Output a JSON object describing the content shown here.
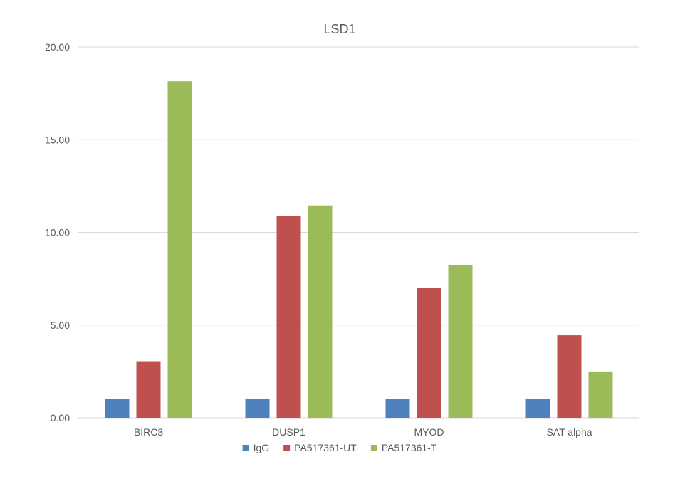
{
  "chart_data": {
    "type": "bar",
    "title": "LSD1",
    "categories": [
      "BIRC3",
      "DUSP1",
      "MYOD",
      "SAT alpha"
    ],
    "series": [
      {
        "name": "IgG",
        "values": [
          1.0,
          1.0,
          1.0,
          1.0
        ],
        "color": "#4f81bd"
      },
      {
        "name": "PA517361-UT",
        "values": [
          3.05,
          10.9,
          7.0,
          4.45
        ],
        "color": "#c0504d"
      },
      {
        "name": "PA517361-T",
        "values": [
          18.15,
          11.45,
          8.25,
          2.5
        ],
        "color": "#9bbb59"
      }
    ],
    "yticks": [
      "0.00",
      "5.00",
      "10.00",
      "15.00",
      "20.00"
    ],
    "ylim": [
      0,
      20
    ],
    "grid": true,
    "legend_position": "bottom"
  }
}
